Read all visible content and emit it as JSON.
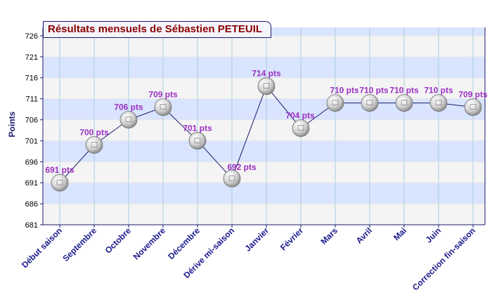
{
  "chart_data": {
    "type": "line",
    "title": "Résultats mensuels de Sébastien PETEUIL",
    "xlabel": "",
    "ylabel": "Points",
    "ylim": [
      681,
      728
    ],
    "yticks": [
      681,
      686,
      691,
      696,
      701,
      706,
      711,
      716,
      721,
      726
    ],
    "categories": [
      "Début saison",
      "Septembre",
      "Octobre",
      "Novembre",
      "Décembre",
      "Dérive mi-saison",
      "Janvier",
      "Février",
      "Mars",
      "Avril",
      "Mai",
      "Juin",
      "Correction fin-saison"
    ],
    "series": [
      {
        "values": [
          691,
          700,
          706,
          709,
          701,
          692,
          714,
          704,
          710,
          710,
          710,
          710,
          709
        ],
        "labels": [
          "691 pts",
          "700 pts",
          "706 pts",
          "709 pts",
          "701 pts",
          "692 pts",
          "714 pts",
          "704 pts",
          "710 pts",
          "710 pts",
          "710 pts",
          "710 pts",
          "709 pts"
        ]
      }
    ],
    "grid": true,
    "legend": "none",
    "colors": {
      "title_text": "#8b0000",
      "line": "#1a1a6e",
      "band_light": "#f4f4f4",
      "band_blue": "#d9e4ff",
      "gridline": "#a8cde0",
      "data_label": "#9b2fc2",
      "axis_text": "#1a1a8e"
    }
  }
}
